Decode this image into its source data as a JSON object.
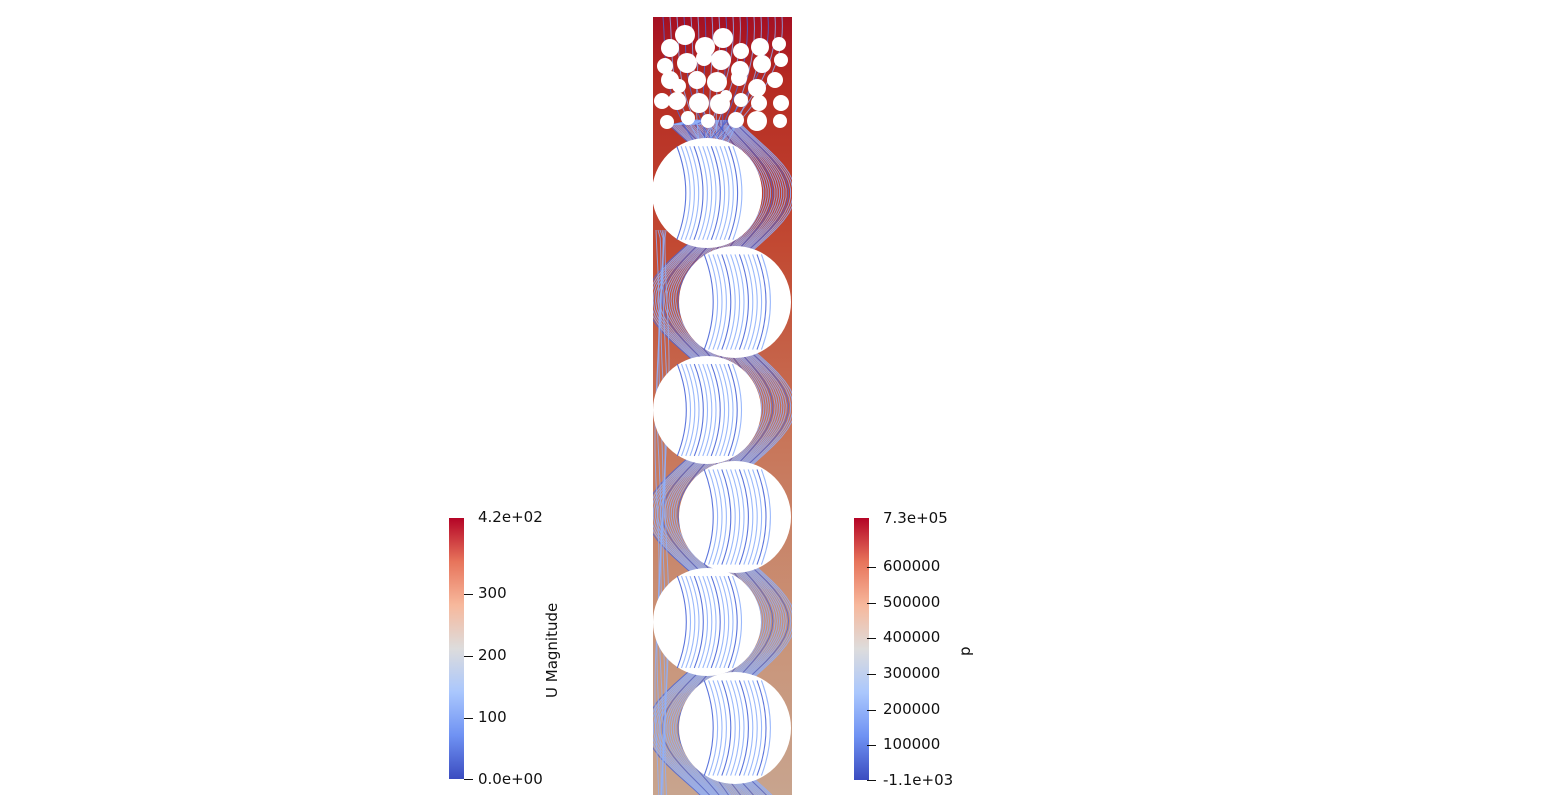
{
  "colors": {
    "background": "#ffffff",
    "colormap": [
      "#3b4cc0",
      "#6f92f3",
      "#aac7fd",
      "#dddcdc",
      "#f7b89c",
      "#e7745b",
      "#b40426"
    ],
    "streamline": "#8fb0fb",
    "streamline_dark": "#4a66d8",
    "particle": "#ffffff"
  },
  "colorbars": {
    "velocity": {
      "title": "U Magnitude",
      "labels": [
        "4.2e+02",
        "300",
        "200",
        "100",
        "0.0e+00"
      ],
      "icon": "colorbar-gradient"
    },
    "pressure": {
      "title": "p",
      "labels": [
        "7.3e+05",
        "600000",
        "500000",
        "400000",
        "300000",
        "200000",
        "100000",
        "-1.1e+03"
      ],
      "icon": "colorbar-gradient"
    }
  }
}
